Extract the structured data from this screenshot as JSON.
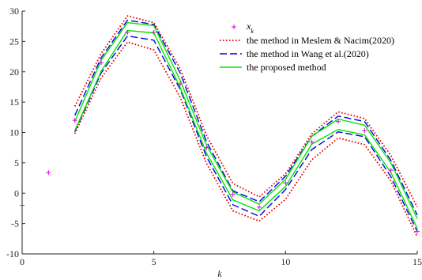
{
  "chart_data": {
    "type": "line",
    "xlabel": "k",
    "xlim": [
      0,
      15
    ],
    "ylim": [
      -10,
      30
    ],
    "xticks": [
      0,
      5,
      10,
      15
    ],
    "yticks": [
      -10,
      -5,
      0,
      5,
      10,
      15,
      20,
      25,
      30
    ],
    "grid": false,
    "legend_position": "top-right",
    "scatter": {
      "name": "x",
      "name_sub": "k",
      "color": "#e600e6",
      "x": [
        0,
        1,
        2,
        3,
        4,
        5,
        6,
        7,
        8,
        9,
        10,
        11,
        12,
        13,
        14,
        15
      ],
      "y": [
        -2,
        3.4,
        12,
        21.5,
        26.5,
        26.5,
        18,
        7.5,
        -0.2,
        -2.3,
        1.7,
        8.4,
        11.8,
        10.3,
        3.8,
        -6.3
      ]
    },
    "series": [
      {
        "name": "the method in Meslem & Nacim(2020)",
        "color": "#e60000",
        "style": "dotted",
        "x": [
          2,
          3,
          4,
          5,
          6,
          7,
          8,
          9,
          10,
          11,
          12,
          13,
          14,
          15
        ],
        "upper": [
          14.3,
          23,
          29.2,
          28.1,
          20.5,
          9.5,
          1.6,
          -0.6,
          3.2,
          9.8,
          13.4,
          12.3,
          6.2,
          -2.3
        ],
        "lower": [
          9.8,
          19,
          24.9,
          23.6,
          15.8,
          4.9,
          -2.9,
          -4.6,
          -1,
          5.5,
          9.1,
          8,
          2,
          -7.2
        ]
      },
      {
        "name": "the method in Wang et al.(2020)",
        "color": "#0000e6",
        "style": "dashed",
        "x": [
          2,
          3,
          4,
          5,
          6,
          7,
          8,
          9,
          10,
          11,
          12,
          13,
          14,
          15
        ],
        "upper": [
          12.8,
          22.3,
          28.5,
          27.8,
          19.8,
          8.5,
          0.4,
          -1.4,
          2.8,
          9.4,
          12.7,
          11.8,
          5.4,
          -3.6
        ],
        "lower": [
          10.1,
          19.8,
          25.9,
          25.2,
          17.1,
          6,
          -1.9,
          -3.8,
          0.6,
          7.2,
          10.1,
          9.3,
          2.7,
          -6.3
        ]
      },
      {
        "name": "the proposed method",
        "color": "#00e600",
        "style": "solid",
        "x": [
          2,
          3,
          4,
          5,
          6,
          7,
          8,
          9,
          10,
          11,
          12,
          13,
          14,
          15
        ],
        "upper": [
          11.8,
          21.9,
          28.1,
          27.6,
          18.6,
          7.9,
          0.2,
          -1.8,
          2.3,
          9.4,
          12.2,
          11.2,
          5,
          -4.2
        ],
        "lower": [
          10.3,
          20.1,
          26.8,
          26.4,
          17.4,
          6.6,
          -1.1,
          -2.9,
          1.1,
          8.1,
          10.5,
          9.6,
          3.4,
          -5.8
        ]
      }
    ]
  }
}
